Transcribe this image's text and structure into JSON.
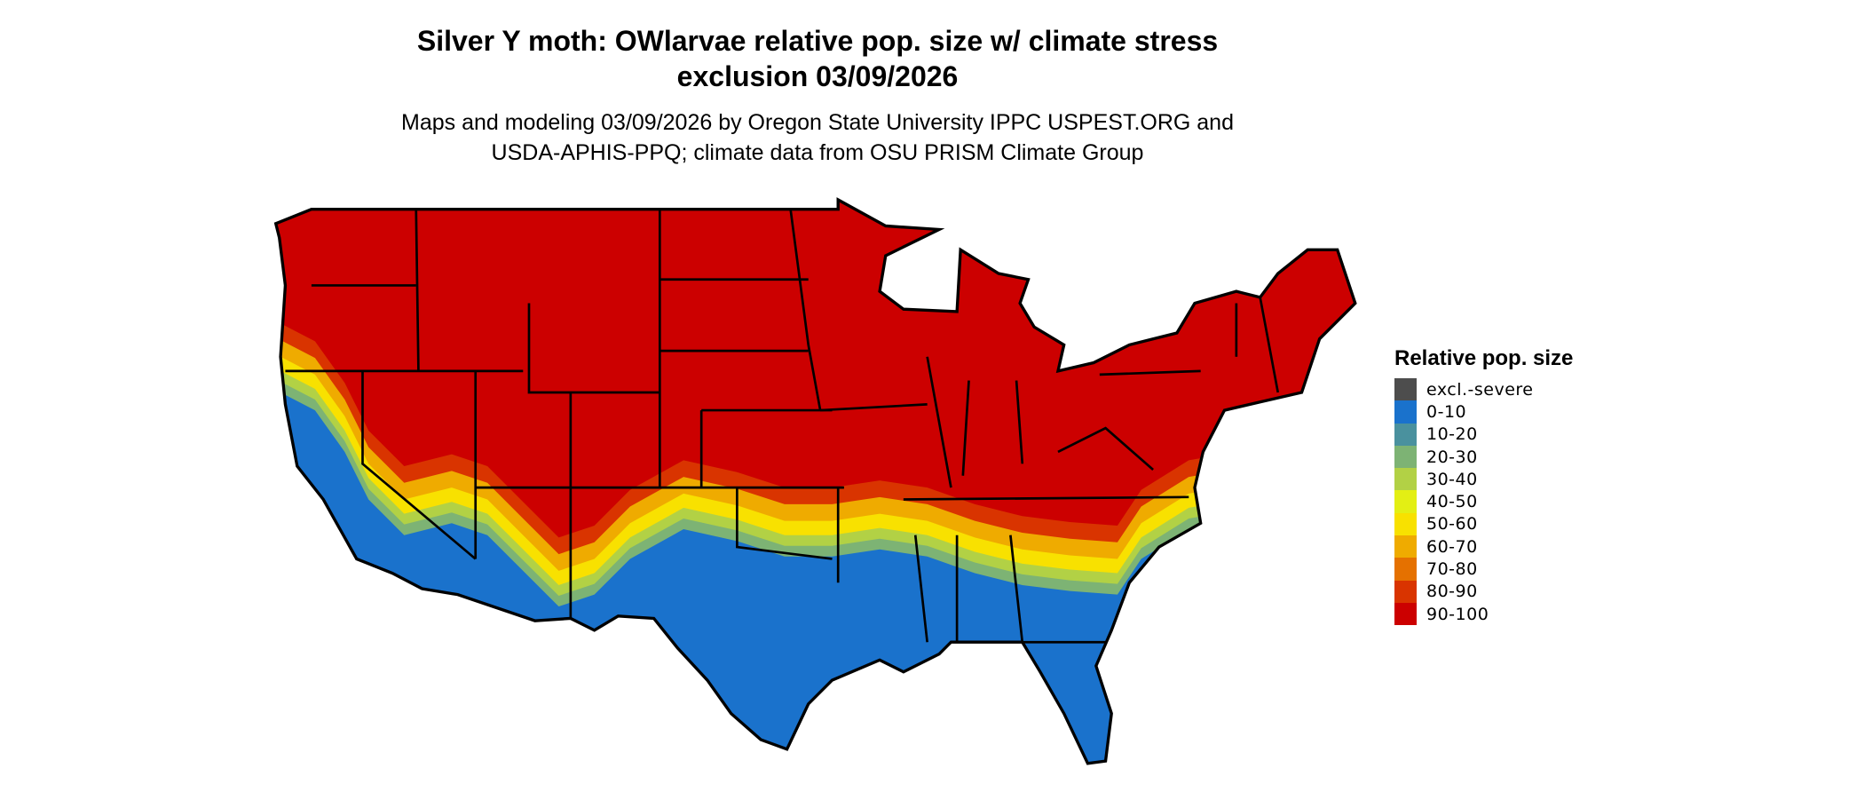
{
  "title": {
    "line1": "Silver Y moth: OWlarvae relative pop. size w/ climate stress",
    "line2": "exclusion 03/09/2026"
  },
  "subtitle": {
    "line1": "Maps and modeling 03/09/2026 by Oregon State University IPPC USPEST.ORG and",
    "line2": "USDA-APHIS-PPQ; climate data from OSU PRISM Climate Group"
  },
  "legend": {
    "title": "Relative pop. size",
    "items": [
      {
        "label": "excl.-severe",
        "color": "#4d4d4d"
      },
      {
        "label": "0-10",
        "color": "#1a72cc"
      },
      {
        "label": "10-20",
        "color": "#4a919e"
      },
      {
        "label": "20-30",
        "color": "#7db374"
      },
      {
        "label": "30-40",
        "color": "#b2d145"
      },
      {
        "label": "40-50",
        "color": "#e3ef14"
      },
      {
        "label": "50-60",
        "color": "#f8e100"
      },
      {
        "label": "60-70",
        "color": "#efab00"
      },
      {
        "label": "70-80",
        "color": "#e57100"
      },
      {
        "label": "80-90",
        "color": "#d93400"
      },
      {
        "label": "90-100",
        "color": "#cc0000"
      }
    ]
  },
  "map": {
    "region": "Contiguous United States",
    "pattern": "90-100 across the north; decreasing through 60-30 bands to 0-10 across the southern states, coastal California and southern Arizona"
  }
}
